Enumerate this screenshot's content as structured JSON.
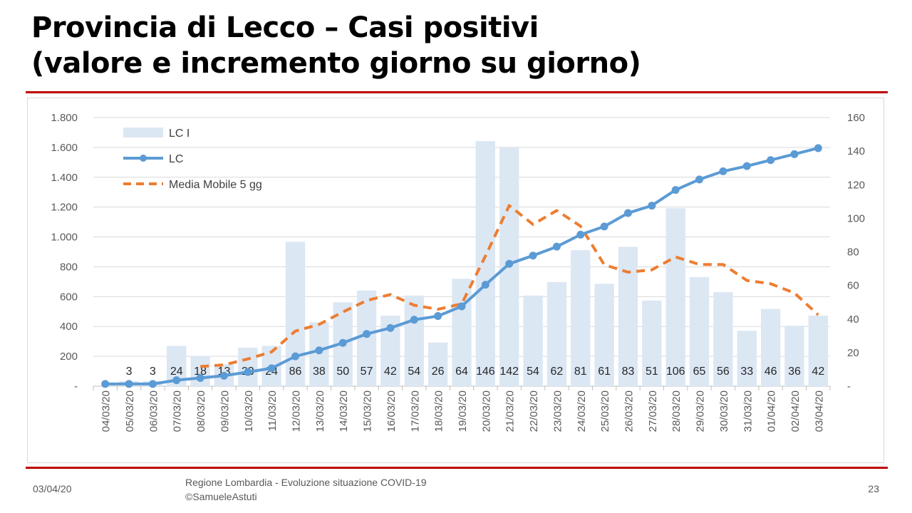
{
  "title_line1": "Provincia di Lecco – Casi positivi",
  "title_line2": "(valore e incremento giorno su giorno)",
  "footer": {
    "date": "03/04/20",
    "source_line1": "Regione Lombardia - Evoluzione situazione COVID-19",
    "source_line2": "©SamueleAstuti",
    "page": "23"
  },
  "colors": {
    "bars": "#dce7f4",
    "line": "#5b9bd5",
    "moving_average": "#ed7d31",
    "rule": "#c00000"
  },
  "chart_data": {
    "type": "bar",
    "categories": [
      "04/03/20",
      "05/03/20",
      "06/03/20",
      "07/03/20",
      "08/03/20",
      "09/03/20",
      "10/03/20",
      "11/03/20",
      "12/03/20",
      "13/03/20",
      "14/03/20",
      "15/03/20",
      "16/03/20",
      "17/03/20",
      "18/03/20",
      "19/03/20",
      "20/03/20",
      "21/03/20",
      "22/03/20",
      "23/03/20",
      "24/03/20",
      "25/03/20",
      "26/03/20",
      "27/03/20",
      "28/03/20",
      "29/03/20",
      "30/03/20",
      "31/03/20",
      "01/04/20",
      "02/04/20",
      "03/04/20"
    ],
    "bar_labels": [
      "",
      "3",
      "3",
      "24",
      "18",
      "13",
      "23",
      "24",
      "86",
      "38",
      "50",
      "57",
      "42",
      "54",
      "26",
      "64",
      "146",
      "142",
      "54",
      "62",
      "81",
      "61",
      "83",
      "51",
      "106",
      "65",
      "56",
      "33",
      "46",
      "36",
      "42"
    ],
    "series": [
      {
        "name": "LC I",
        "type": "bar",
        "axis": "right",
        "values": [
          null,
          3,
          3,
          24,
          18,
          13,
          23,
          24,
          86,
          38,
          50,
          57,
          42,
          54,
          26,
          64,
          146,
          142,
          54,
          62,
          81,
          61,
          83,
          51,
          106,
          65,
          56,
          33,
          46,
          36,
          42
        ]
      },
      {
        "name": "LC",
        "type": "line",
        "axis": "left",
        "values": [
          15,
          15,
          15,
          40,
          55,
          70,
          95,
          120,
          200,
          240,
          290,
          350,
          390,
          445,
          470,
          535,
          680,
          820,
          875,
          935,
          1015,
          1070,
          1160,
          1210,
          1315,
          1385,
          1440,
          1475,
          1515,
          1555,
          1595
        ]
      },
      {
        "name": "Media Mobile 5 gg",
        "type": "line-dashed",
        "axis": "right",
        "values": [
          null,
          null,
          null,
          null,
          11.7,
          12.7,
          16.2,
          20.4,
          32.8,
          36.8,
          44.2,
          51,
          54.6,
          48.2,
          45.8,
          49,
          77.6,
          107.6,
          96.4,
          104.6,
          95.3,
          72.3,
          67.9,
          69.3,
          77,
          72.5,
          72.5,
          63,
          61,
          55.5,
          42.5
        ]
      }
    ],
    "ylim_left": [
      0,
      1800
    ],
    "yticks_left": [
      "-",
      "200",
      "400",
      "600",
      "800",
      "1.000",
      "1.200",
      "1.400",
      "1.600",
      "1.800"
    ],
    "ylim_right": [
      0,
      160
    ],
    "yticks_right": [
      "-",
      "20",
      "40",
      "60",
      "80",
      "100",
      "120",
      "140",
      "160"
    ],
    "grid": true,
    "legend_position": "top-left"
  }
}
